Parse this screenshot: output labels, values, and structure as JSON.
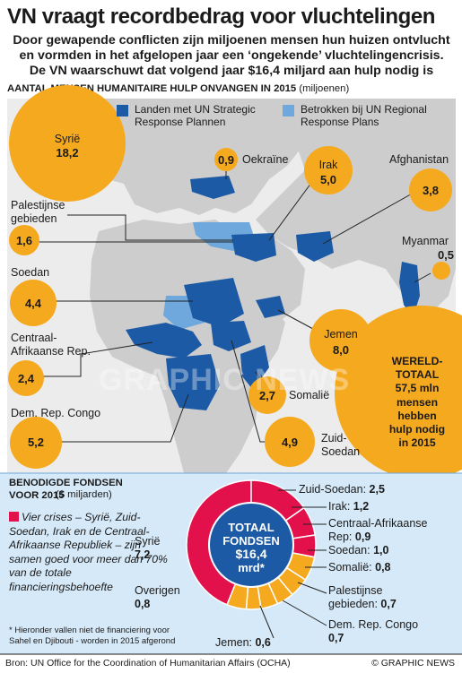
{
  "header": {
    "title": "VN vraagt recordbedrag voor vluchtelingen",
    "subtitle_lines": [
      "Door gewapende conflicten zijn miljoenen mensen hun huizen ontvlucht",
      "en vormden in het afgelopen jaar een ‘ongekende’ vluchtelingencrisis.",
      "De VN waarschuwt dat volgend jaar $16,4 miljard aan hulp nodig is"
    ]
  },
  "colors": {
    "orange": "#f5a91f",
    "dark_blue": "#1d5aa5",
    "light_blue": "#6fa8dc",
    "crimson": "#e2114b",
    "panel": "#d6e9f8",
    "land": "#cfcfcf",
    "sea": "#efefef"
  },
  "chart_data": [
    {
      "type": "bubble-map",
      "title": "AANTAL MENSEN HUMANITAIRE HULP ONVANGEN IN 2015",
      "unit": "(miljoenen)",
      "legend": [
        {
          "label_lines": [
            "Landen met UN Strategic",
            "Response Plannen"
          ],
          "color": "#1d5aa5"
        },
        {
          "label_lines": [
            "Betrokken bij UN Regional",
            "Response Plans"
          ],
          "color": "#6fa8dc"
        }
      ],
      "countries": [
        {
          "name": "Syrië",
          "value": "18,2"
        },
        {
          "name": "Oekraïne",
          "value": "0,9"
        },
        {
          "name": "Irak",
          "value": "5,0"
        },
        {
          "name": "Afghanistan",
          "value": "3,8"
        },
        {
          "name": "Palestijnse gebieden",
          "value": "1,6"
        },
        {
          "name": "Myanmar",
          "value": "0,5"
        },
        {
          "name": "Soedan",
          "value": "4,4"
        },
        {
          "name": "Jemen",
          "value": "8,0"
        },
        {
          "name": "Centraal-Afrikaanse Rep.",
          "value": "2,4"
        },
        {
          "name": "Somalië",
          "value": "2,7"
        },
        {
          "name": "Dem. Rep. Congo",
          "value": "5,2"
        },
        {
          "name": "Zuid-Soedan",
          "value": "4,9"
        }
      ],
      "world_total_lines": [
        "WERELD-",
        "TOTAAL",
        "57,5 mln",
        "mensen",
        "hebben",
        "hulp nodig",
        "in 2015"
      ]
    },
    {
      "type": "pie",
      "title": "BENODIGDE FONDSEN VOOR 2015",
      "unit": "($ miljarden)",
      "center_lines": [
        "TOTAAL",
        "FONDSEN",
        "$16,4",
        "mrd*"
      ],
      "slices": [
        {
          "name": "Syrië",
          "value": 7.2,
          "label": "7,2",
          "highlight": true
        },
        {
          "name": "Zuid-Soedan",
          "value": 2.5,
          "label": "2,5",
          "highlight": true
        },
        {
          "name": "Irak",
          "value": 1.2,
          "label": "1,2",
          "highlight": true
        },
        {
          "name": "Centraal-Afrikaanse Rep",
          "value": 0.9,
          "label": "0,9",
          "highlight": true
        },
        {
          "name": "Soedan",
          "value": 1.0,
          "label": "1,0",
          "highlight": false
        },
        {
          "name": "Somalië",
          "value": 0.8,
          "label": "0,8",
          "highlight": false
        },
        {
          "name": "Palestijnse gebieden",
          "value": 0.7,
          "label": "0,7",
          "highlight": false
        },
        {
          "name": "Dem. Rep. Congo",
          "value": 0.7,
          "label": "0,7",
          "highlight": false
        },
        {
          "name": "Jemen",
          "value": 0.6,
          "label": "0,6",
          "highlight": false
        },
        {
          "name": "Overigen",
          "value": 0.8,
          "label": "0,8",
          "highlight": false
        }
      ],
      "note": "Vier crises – Syrië, Zuid-Soedan, Irak en de Centraal-Afrikaanse Republiek – zijn samen goed voor meer dan 70% van de totale financieringsbehoefte",
      "footnote": "* Hieronder vallen niet de financiering voor Sahel en Djibouti - worden in 2015 afgerond"
    }
  ],
  "labels": {
    "syrie": "Syrië",
    "oekraine": "Oekraïne",
    "irak": "Irak",
    "afghanistan": "Afghanistan",
    "pal1": "Palestijnse",
    "pal2": "gebieden",
    "myanmar": "Myanmar",
    "soedan": "Soedan",
    "jemen": "Jemen",
    "car1": "Centraal-",
    "car2": "Afrikaanse Rep.",
    "somalie": "Somalië",
    "drc": "Dem. Rep. Congo",
    "zs1": "Zuid-",
    "zs2": "Soedan"
  },
  "ring_labels": {
    "zs": "Zuid-Soedan:",
    "irak": "Irak:",
    "car1": "Centraal-Afrikaanse",
    "car2": "Rep:",
    "soedan": "Soedan:",
    "somalie": "Somalië:",
    "pal1": "Palestijnse",
    "pal2": "gebieden:",
    "drc1": "Dem. Rep. Congo",
    "jemen": "Jemen:",
    "syrie": "Syrië",
    "overigen": "Overigen"
  },
  "footer": {
    "source": "Bron: UN Office for the Coordination of Humanitarian Affairs (OCHA)",
    "credit": "© GRAPHIC NEWS",
    "watermark": "GRAPHIC NEWS"
  }
}
